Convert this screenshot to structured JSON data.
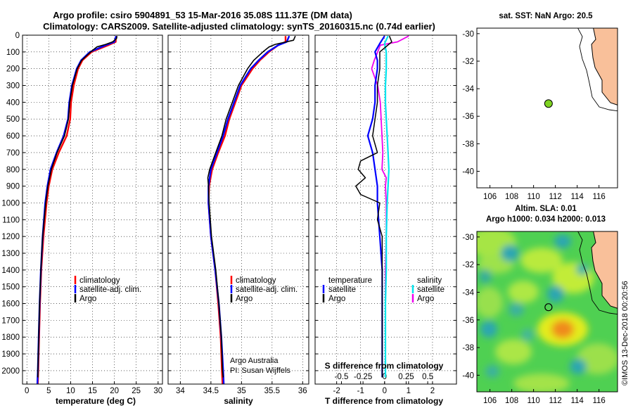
{
  "header": {
    "line1": "Argo profile: csiro 5904891_53 15-Mar-2016 35.08S 111.37E (DM data)",
    "line2": "Climatology: CARS2009. Satellite-adjusted climatology: synTS_20160315.nc (0.74d earlier)"
  },
  "colors": {
    "argo": "#000000",
    "climatology": "#ff0000",
    "satellite": "#0000ff",
    "sal_satellite": "#00e5ee",
    "sal_argo": "#ee00ee",
    "land": "#f9c09a",
    "marker": "#7ed321"
  },
  "chart_data": [
    {
      "id": "temperature",
      "type": "line",
      "xlabel": "temperature (deg C)",
      "ylabel": "",
      "xlim": [
        -1,
        31
      ],
      "ylim": [
        2080,
        0
      ],
      "xticks": [
        "0",
        "5",
        "10",
        "15",
        "20",
        "25",
        "30"
      ],
      "yticks": [
        "0",
        "100",
        "200",
        "300",
        "400",
        "500",
        "600",
        "700",
        "800",
        "900",
        "1000",
        "1100",
        "1200",
        "1300",
        "1400",
        "1500",
        "1600",
        "1700",
        "1800",
        "1900",
        "2000"
      ],
      "legend": [
        "climatology",
        "satellite-adj. clim.",
        "Argo"
      ],
      "series": [
        {
          "name": "climatology",
          "depth": [
            5,
            40,
            60,
            100,
            150,
            200,
            300,
            400,
            500,
            600,
            700,
            800,
            900,
            1000,
            1200,
            1400,
            1600,
            1800,
            2000,
            2080
          ],
          "values": [
            20.4,
            20.3,
            18.6,
            14.8,
            12.7,
            11.7,
            10.7,
            10.1,
            9.9,
            9.1,
            7.3,
            5.8,
            5.0,
            4.5,
            3.8,
            3.3,
            3.0,
            2.8,
            2.6,
            2.5
          ]
        },
        {
          "name": "satellite-adj. clim.",
          "depth": [
            5,
            40,
            60,
            100,
            150,
            200,
            300,
            400,
            500,
            600,
            700,
            800,
            900,
            1000,
            1200,
            1400,
            1600,
            1800,
            2000,
            2080
          ],
          "values": [
            20.4,
            20.0,
            18.0,
            14.4,
            12.4,
            11.4,
            10.3,
            9.7,
            9.4,
            8.4,
            6.8,
            5.4,
            4.7,
            4.2,
            3.6,
            3.2,
            2.9,
            2.7,
            2.5,
            2.4
          ]
        },
        {
          "name": "Argo",
          "depth": [
            5,
            20,
            40,
            55,
            70,
            100,
            150,
            200,
            300,
            400,
            500,
            600,
            700,
            800,
            900,
            1000,
            1200,
            1400,
            1600,
            1800,
            2000,
            2040
          ],
          "values": [
            20.6,
            20.5,
            19.6,
            18.0,
            16.0,
            14.6,
            12.5,
            11.5,
            10.4,
            9.8,
            9.5,
            8.6,
            6.9,
            5.6,
            4.8,
            4.3,
            3.6,
            3.2,
            2.9,
            2.7,
            2.5,
            2.5
          ]
        }
      ]
    },
    {
      "id": "salinity",
      "type": "line",
      "xlabel": "salinity",
      "ylabel": "",
      "xlim": [
        33.8,
        36.1
      ],
      "ylim": [
        2080,
        0
      ],
      "xticks": [
        "34",
        "34.5",
        "35",
        "35.5",
        "36"
      ],
      "legend": [
        "climatology",
        "satellite-adj. clim.",
        "Argo"
      ],
      "annotation": [
        "Argo Australia",
        "PI: Susan Wijffels"
      ],
      "series": [
        {
          "name": "climatology",
          "depth": [
            5,
            40,
            60,
            100,
            150,
            200,
            300,
            400,
            500,
            600,
            700,
            800,
            900,
            1000,
            1200,
            1400,
            1600,
            1800,
            2000,
            2080
          ],
          "values": [
            35.72,
            35.72,
            35.6,
            35.45,
            35.3,
            35.18,
            35.0,
            34.9,
            34.8,
            34.73,
            34.62,
            34.52,
            34.47,
            34.46,
            34.5,
            34.57,
            34.62,
            34.66,
            34.68,
            34.69
          ]
        },
        {
          "name": "satellite-adj. clim.",
          "depth": [
            5,
            40,
            60,
            100,
            150,
            200,
            300,
            400,
            500,
            600,
            700,
            800,
            900,
            1000,
            1200,
            1400,
            1600,
            1800,
            2000,
            2080
          ],
          "values": [
            35.78,
            35.74,
            35.6,
            35.43,
            35.28,
            35.15,
            34.98,
            34.88,
            34.78,
            34.7,
            34.6,
            34.5,
            34.46,
            34.46,
            34.5,
            34.57,
            34.63,
            34.67,
            34.7,
            34.71
          ]
        },
        {
          "name": "Argo",
          "depth": [
            5,
            30,
            55,
            70,
            100,
            150,
            200,
            300,
            400,
            500,
            600,
            700,
            800,
            850,
            900,
            1000,
            1200,
            1400,
            1600,
            1800,
            2000,
            2040
          ],
          "values": [
            35.88,
            35.85,
            35.55,
            35.45,
            35.35,
            35.2,
            35.1,
            34.95,
            34.85,
            34.75,
            34.68,
            34.58,
            34.48,
            34.45,
            34.46,
            34.47,
            34.51,
            34.58,
            34.63,
            34.67,
            34.69,
            34.7
          ]
        }
      ]
    },
    {
      "id": "difference",
      "type": "line",
      "xlabel": "T difference from climatology",
      "ylabel": "",
      "xlim": [
        -2.9,
        3.0
      ],
      "ylim": [
        2080,
        0
      ],
      "xticks": [
        "-2",
        "-1",
        "0",
        "1",
        "2"
      ],
      "sal_xlabel": "S difference from climatology",
      "sal_xticks": [
        "-0.5",
        "-0.25",
        "0",
        "0.25",
        "0.5"
      ],
      "legend_temperature": {
        "heading": "temperature",
        "items": [
          "satellite",
          "Argo"
        ]
      },
      "legend_salinity": {
        "heading": "salinity",
        "items": [
          "satellite",
          "Argo"
        ]
      },
      "series": [
        {
          "name": "T satellite",
          "depth": [
            5,
            50,
            100,
            150,
            200,
            300,
            400,
            500,
            600,
            700,
            800,
            900,
            1000,
            1200,
            1400,
            1600,
            1800,
            2000,
            2040
          ],
          "values": [
            0.0,
            -0.2,
            -0.4,
            -0.3,
            -0.3,
            -0.4,
            -0.4,
            -0.5,
            -0.7,
            -0.5,
            -0.4,
            -0.3,
            -0.3,
            -0.2,
            -0.1,
            -0.1,
            -0.1,
            -0.1,
            -0.1
          ]
        },
        {
          "name": "T Argo",
          "depth": [
            5,
            40,
            100,
            150,
            200,
            300,
            400,
            500,
            600,
            700,
            750,
            800,
            850,
            900,
            950,
            1000,
            1100,
            1200,
            1400,
            1600,
            1800,
            2000,
            2040
          ],
          "values": [
            0.2,
            0.3,
            -0.2,
            -0.2,
            -0.2,
            -0.3,
            -0.3,
            -0.4,
            -0.5,
            -0.3,
            -1.0,
            -1.1,
            -0.8,
            -1.2,
            -1.0,
            -0.2,
            -0.3,
            -0.1,
            -0.1,
            -0.1,
            -0.1,
            -0.1,
            -0.1
          ]
        },
        {
          "name": "S satellite",
          "depth": [
            5,
            50,
            100,
            200,
            300,
            400,
            500,
            600,
            700,
            800,
            900,
            1000,
            1200,
            1400,
            1600,
            1800,
            2000,
            2040
          ],
          "values": [
            0.04,
            0.0,
            0.02,
            0.02,
            0.01,
            0.01,
            0.02,
            0.03,
            0.04,
            0.05,
            0.04,
            0.03,
            0.02,
            0.02,
            0.01,
            0.01,
            0.01,
            0.01
          ]
        },
        {
          "name": "S Argo",
          "depth": [
            5,
            40,
            60,
            100,
            150,
            200,
            300,
            400,
            500,
            600,
            700,
            800,
            850,
            900,
            1000,
            1200,
            1400,
            1600,
            1800,
            2000,
            2040
          ],
          "values": [
            0.28,
            0.15,
            -0.05,
            -0.08,
            -0.12,
            -0.15,
            -0.08,
            -0.05,
            -0.04,
            -0.03,
            -0.02,
            -0.03,
            0.02,
            0.01,
            0.02,
            0.02,
            0.01,
            0.01,
            0.01,
            0.01,
            0.01
          ]
        }
      ]
    },
    {
      "id": "map_sst",
      "type": "map",
      "title": "sat. SST: NaN Argo: 20.5",
      "xticks": [
        "106",
        "108",
        "110",
        "112",
        "114",
        "116"
      ],
      "yticks": [
        "-30",
        "-32",
        "-34",
        "-36",
        "-38",
        "-40"
      ],
      "xlim": [
        104.8,
        117.7
      ],
      "ylim": [
        -41.2,
        -29.6
      ],
      "marker": {
        "lon": 111.37,
        "lat": -35.08
      }
    },
    {
      "id": "map_sla",
      "type": "heatmap",
      "title": "Altim. SLA: 0.01",
      "subtitle": "Argo h1000: 0.034 h2000: 0.013",
      "xticks": [
        "106",
        "108",
        "110",
        "112",
        "114",
        "116"
      ],
      "yticks": [
        "-30",
        "-32",
        "-34",
        "-36",
        "-38",
        "-40"
      ],
      "xlim": [
        104.8,
        117.7
      ],
      "ylim": [
        -41.2,
        -29.6
      ],
      "marker": {
        "lon": 111.37,
        "lat": -35.08
      }
    }
  ],
  "credit": "©IMOS 13-Dec-2018 00:20:56"
}
